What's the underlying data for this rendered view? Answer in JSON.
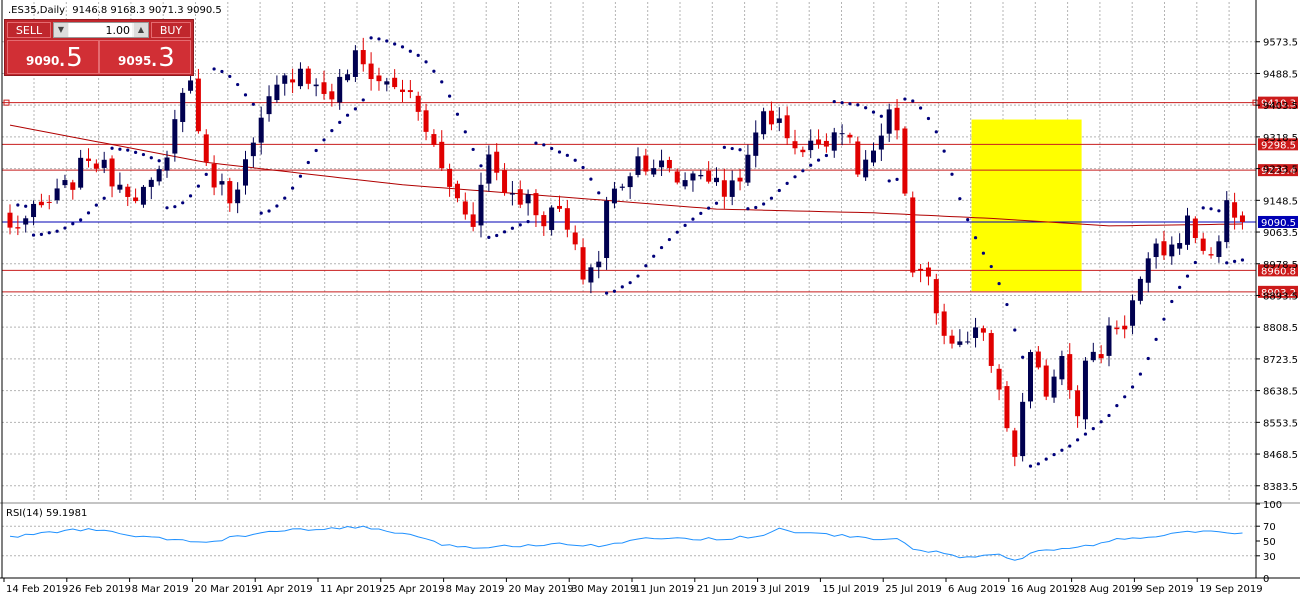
{
  "header": {
    "symbol_text": ".ES35,Daily",
    "ohlc_text": "9146.8 9168.3 9071.3 9090.5"
  },
  "trade_panel": {
    "sell_label": "SELL",
    "buy_label": "BUY",
    "lot": "1.00",
    "sell_price_main": "9090",
    "sell_price_frac": ".5",
    "buy_price_main": "9095",
    "buy_price_frac": ".3"
  },
  "colors": {
    "bull": "#000050",
    "bear": "#e00000",
    "grid": "#b4b4b4",
    "level_line": "#c81e1e",
    "ma_line": "#b00000",
    "sar_dot": "#00007a",
    "highlight": "#ffff00",
    "rsi_line": "#1e90ff",
    "current_price": "#0000b4"
  },
  "chart_data": [
    {
      "type": "candlestick",
      "title": ".ES35,Daily",
      "ylim": [
        8340,
        9680
      ],
      "y_ticks": [
        9573.5,
        9488.5,
        9403.5,
        9318.5,
        9233.5,
        9148.5,
        9063.5,
        8978.5,
        8893.5,
        8808.5,
        8723.5,
        8638.5,
        8553.5,
        8468.5,
        8383.5
      ],
      "x_labels": [
        "14 Feb 2019",
        "26 Feb 2019",
        "8 Mar 2019",
        "20 Mar 2019",
        "1 Apr 2019",
        "11 Apr 2019",
        "25 Apr 2019",
        "8 May 2019",
        "20 May 2019",
        "30 May 2019",
        "11 Jun 2019",
        "21 Jun 2019",
        "3 Jul 2019",
        "15 Jul 2019",
        "25 Jul 2019",
        "6 Aug 2019",
        "16 Aug 2019",
        "28 Aug 2019",
        "9 Sep 2019",
        "19 Sep 2019"
      ],
      "x_label_bars": [
        0,
        8,
        16,
        24,
        32,
        40,
        48,
        56,
        64,
        72,
        80,
        88,
        96,
        104,
        112,
        120,
        128,
        136,
        144,
        152
      ],
      "close_anchors": [
        [
          0,
          9070
        ],
        [
          5,
          9140
        ],
        [
          8,
          9200
        ],
        [
          10,
          9270
        ],
        [
          13,
          9210
        ],
        [
          16,
          9170
        ],
        [
          18,
          9180
        ],
        [
          20,
          9250
        ],
        [
          21,
          9390
        ],
        [
          23,
          9470
        ],
        [
          25,
          9230
        ],
        [
          28,
          9160
        ],
        [
          31,
          9290
        ],
        [
          33,
          9410
        ],
        [
          35,
          9470
        ],
        [
          37,
          9510
        ],
        [
          39,
          9450
        ],
        [
          41,
          9430
        ],
        [
          44,
          9530
        ],
        [
          47,
          9470
        ],
        [
          50,
          9450
        ],
        [
          51,
          9420
        ],
        [
          53,
          9340
        ],
        [
          55,
          9230
        ],
        [
          57,
          9150
        ],
        [
          59,
          9100
        ],
        [
          61,
          9270
        ],
        [
          63,
          9180
        ],
        [
          66,
          9150
        ],
        [
          68,
          9100
        ],
        [
          70,
          9120
        ],
        [
          73,
          8950
        ],
        [
          75,
          8990
        ],
        [
          76,
          9140
        ],
        [
          78,
          9200
        ],
        [
          80,
          9260
        ],
        [
          83,
          9240
        ],
        [
          85,
          9200
        ],
        [
          88,
          9230
        ],
        [
          91,
          9170
        ],
        [
          94,
          9250
        ],
        [
          96,
          9390
        ],
        [
          98,
          9350
        ],
        [
          101,
          9280
        ],
        [
          104,
          9320
        ],
        [
          106,
          9350
        ],
        [
          108,
          9230
        ],
        [
          111,
          9300
        ],
        [
          112,
          9380
        ],
        [
          113,
          9310
        ],
        [
          114,
          9180
        ],
        [
          115,
          8970
        ],
        [
          117,
          8950
        ],
        [
          118,
          8830
        ],
        [
          120,
          8740
        ],
        [
          122,
          8770
        ],
        [
          124,
          8800
        ],
        [
          125,
          8700
        ],
        [
          126,
          8620
        ],
        [
          127,
          8540
        ],
        [
          128,
          8470
        ],
        [
          130,
          8720
        ],
        [
          132,
          8640
        ],
        [
          134,
          8740
        ],
        [
          136,
          8590
        ],
        [
          137,
          8710
        ],
        [
          139,
          8740
        ],
        [
          140,
          8810
        ],
        [
          142,
          8820
        ],
        [
          144,
          8930
        ],
        [
          146,
          9010
        ],
        [
          148,
          9020
        ],
        [
          150,
          9090
        ],
        [
          153,
          8990
        ],
        [
          155,
          9130
        ],
        [
          157,
          9090
        ]
      ],
      "levels": [
        9410.3,
        9298.5,
        9229.4,
        8960.8,
        8903.2
      ],
      "current_price": 9090.5,
      "highlight_zone": {
        "bar_start": 123,
        "bar_end": 136,
        "high": 9365,
        "low": 8905
      },
      "moving_average": [
        [
          0,
          9350
        ],
        [
          25,
          9250
        ],
        [
          50,
          9190
        ],
        [
          75,
          9150
        ],
        [
          90,
          9125
        ],
        [
          110,
          9115
        ],
        [
          125,
          9100
        ],
        [
          140,
          9080
        ],
        [
          157,
          9085
        ]
      ]
    },
    {
      "type": "line",
      "name": "RSI(14) 59.1981",
      "ylim": [
        0,
        100
      ],
      "y_ticks": [
        100,
        70,
        50,
        30,
        0
      ],
      "anchors": [
        [
          0,
          55
        ],
        [
          5,
          62
        ],
        [
          10,
          66
        ],
        [
          18,
          54
        ],
        [
          25,
          48
        ],
        [
          30,
          58
        ],
        [
          35,
          64
        ],
        [
          40,
          66
        ],
        [
          45,
          69
        ],
        [
          50,
          60
        ],
        [
          55,
          45
        ],
        [
          60,
          41
        ],
        [
          65,
          44
        ],
        [
          70,
          47
        ],
        [
          75,
          44
        ],
        [
          80,
          52
        ],
        [
          85,
          54
        ],
        [
          90,
          53
        ],
        [
          95,
          56
        ],
        [
          98,
          66
        ],
        [
          101,
          61
        ],
        [
          105,
          58
        ],
        [
          110,
          53
        ],
        [
          113,
          52
        ],
        [
          115,
          40
        ],
        [
          118,
          35
        ],
        [
          121,
          27
        ],
        [
          125,
          33
        ],
        [
          128,
          25
        ],
        [
          131,
          35
        ],
        [
          134,
          40
        ],
        [
          137,
          43
        ],
        [
          141,
          52
        ],
        [
          145,
          56
        ],
        [
          150,
          62
        ],
        [
          153,
          63
        ],
        [
          157,
          59
        ]
      ]
    }
  ]
}
